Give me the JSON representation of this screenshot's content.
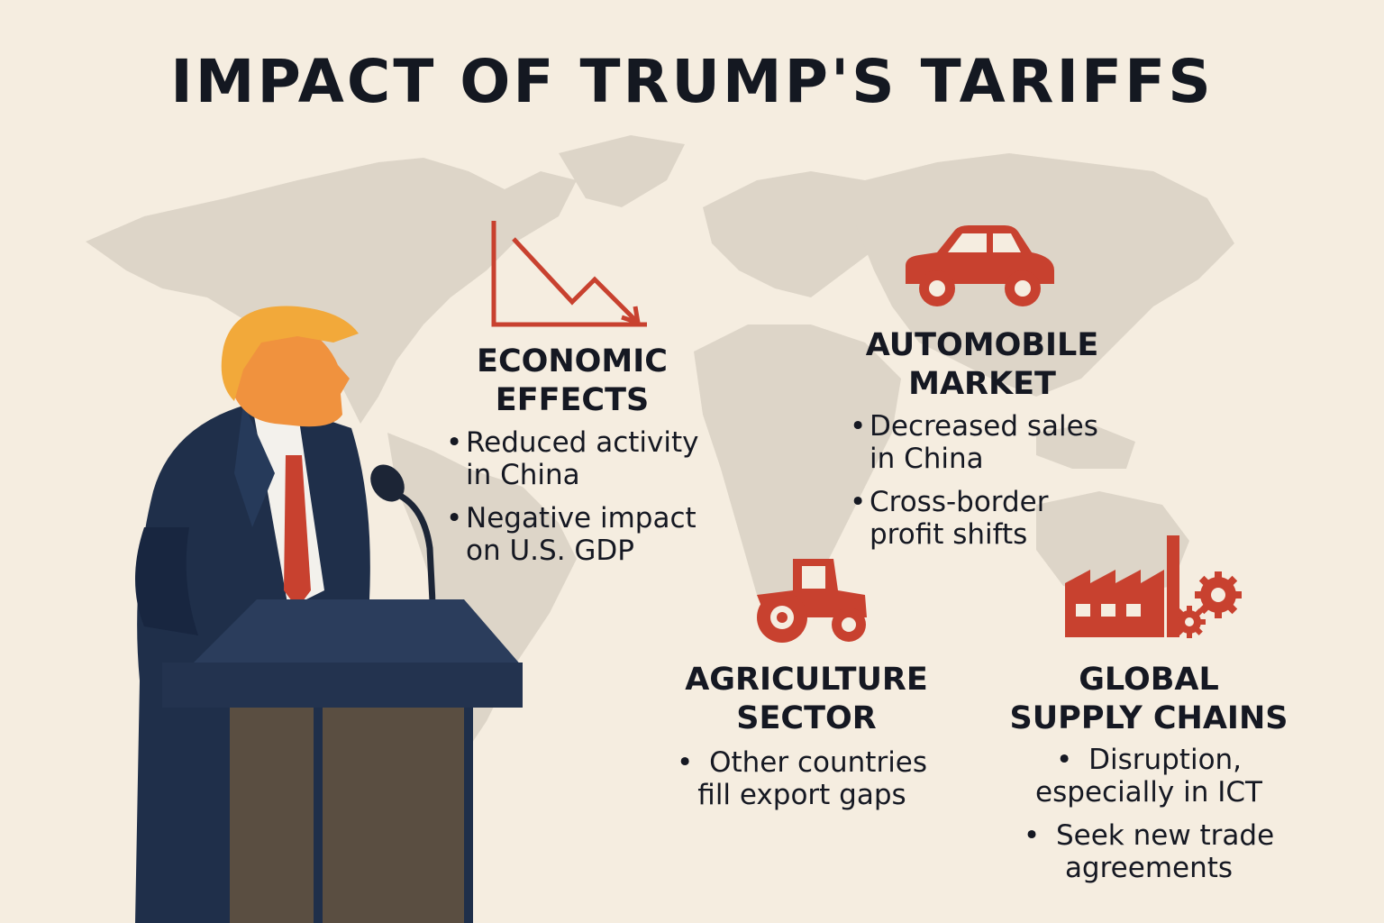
{
  "title": "IMPACT OF TRUMP'S TARIFFS",
  "colors": {
    "background": "#f5ede0",
    "map": "#ddd5c8",
    "accent": "#c8412f",
    "suit": "#1f2f4a",
    "podium": "#2b3d5c",
    "podium_front": "#5a4e41",
    "text": "#151822"
  },
  "sections": [
    {
      "id": "economic",
      "icon": "declining-chart-icon",
      "heading_line1": "ECONOMIC",
      "heading_line2": "EFFECTS",
      "bullets": [
        {
          "line1": "Reduced activity",
          "line2": "in China"
        },
        {
          "line1": "Negative impact",
          "line2": "on U.S. GDP"
        }
      ]
    },
    {
      "id": "automobile",
      "icon": "car-icon",
      "heading_line1": "AUTOMOBILE",
      "heading_line2": "MARKET",
      "bullets": [
        {
          "line1": "Decreased sales",
          "line2": "in China"
        },
        {
          "line1": "Cross-border",
          "line2": "profit shifts"
        }
      ]
    },
    {
      "id": "agriculture",
      "icon": "tractor-icon",
      "heading_line1": "AGRICULTURE",
      "heading_line2": "SECTOR",
      "bullets": [
        {
          "line1": "Other countries",
          "line2": "fill export gaps"
        }
      ]
    },
    {
      "id": "supply",
      "icon": "factory-gears-icon",
      "heading_line1": "GLOBAL",
      "heading_line2": "SUPPLY CHAINS",
      "bullets": [
        {
          "line1": "Disruption,",
          "line2": "especially in ICT"
        },
        {
          "line1": "Seek new trade",
          "line2": "agreements"
        }
      ]
    }
  ]
}
